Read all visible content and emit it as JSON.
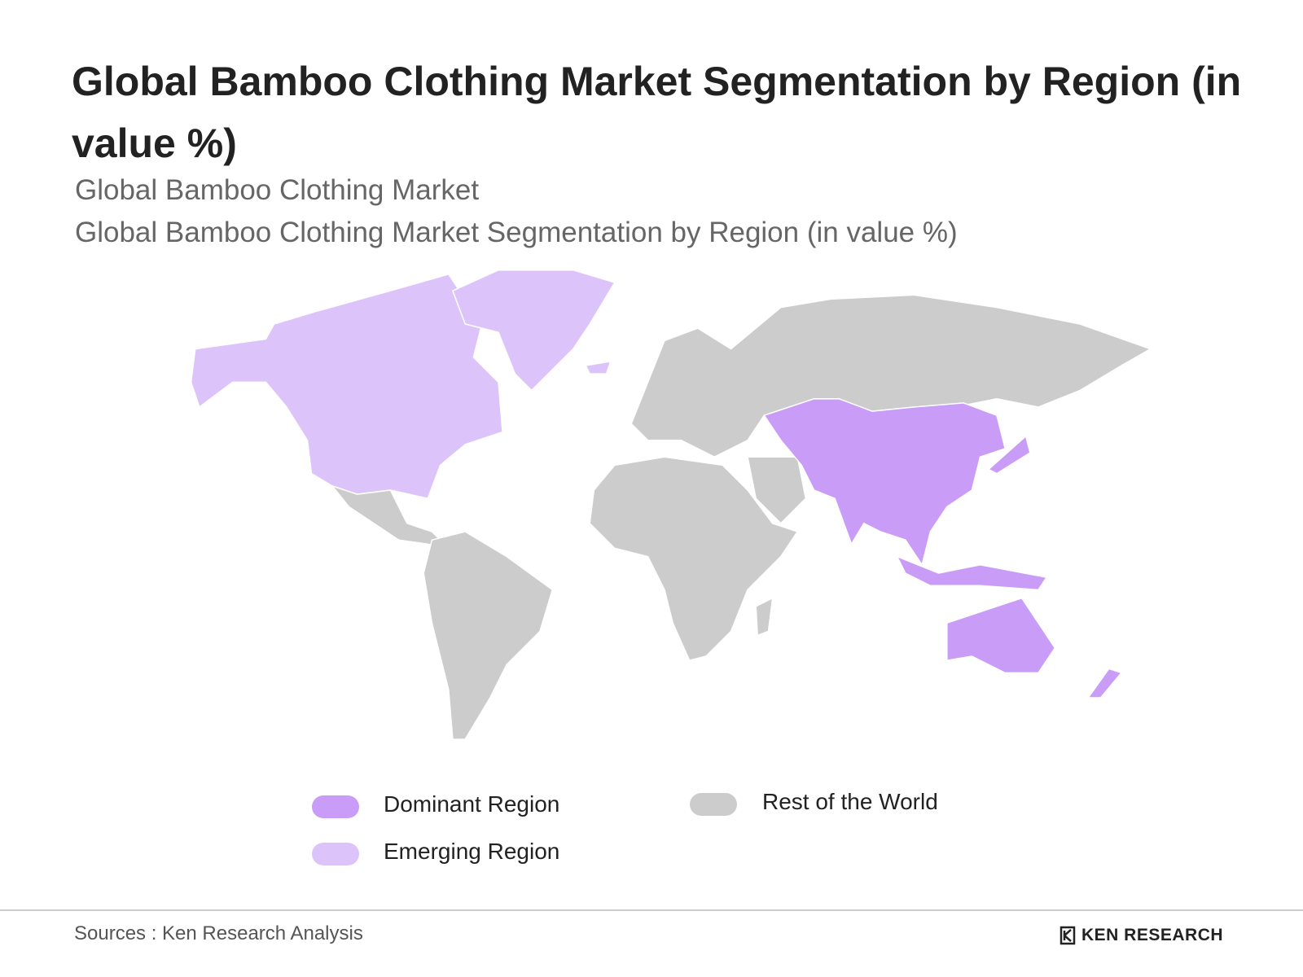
{
  "header": {
    "title": "Global Bamboo Clothing Market Segmentation by Region (in value %)",
    "subtitle": "Global Bamboo Clothing Market",
    "subtitle2": "Global Bamboo Clothing Market Segmentation by Region (in value %)"
  },
  "legend": {
    "items": [
      {
        "label": "Dominant Region",
        "color": "#c99cf7"
      },
      {
        "label": "Emerging Region",
        "color": "#dcc4fb"
      },
      {
        "label": "Rest of the World",
        "color": "#cccccc"
      }
    ]
  },
  "footer": {
    "source": "Sources : Ken Research Analysis",
    "logo": "KEN RESEARCH"
  }
}
